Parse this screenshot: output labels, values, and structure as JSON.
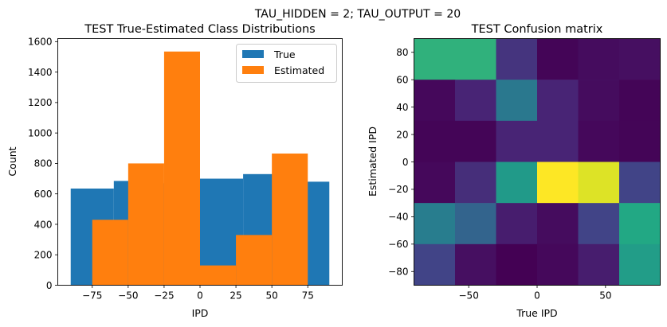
{
  "suptitle": "TAU_HIDDEN = 2; TAU_OUTPUT = 20",
  "chart_data": [
    {
      "type": "bar",
      "subtype": "histogram",
      "title": "TEST True-Estimated Class Distributions",
      "xlabel": "IPD",
      "ylabel": "Count",
      "xlim": [
        -99,
        99
      ],
      "ylim": [
        0,
        1620
      ],
      "xticks": [
        -75,
        -50,
        -25,
        0,
        25,
        50,
        75
      ],
      "yticks": [
        0,
        200,
        400,
        600,
        800,
        1000,
        1200,
        1400,
        1600
      ],
      "legend": {
        "position": "top-right",
        "entries": [
          "True",
          "Estimated"
        ]
      },
      "series": [
        {
          "name": "True",
          "color": "#1f77b4",
          "bins": [
            {
              "start": -90,
              "end": -60,
              "value": 635
            },
            {
              "start": -60,
              "end": -30,
              "value": 685
            },
            {
              "start": -30,
              "end": 0,
              "value": 670
            },
            {
              "start": 0,
              "end": 30,
              "value": 700
            },
            {
              "start": 30,
              "end": 60,
              "value": 730
            },
            {
              "start": 60,
              "end": 90,
              "value": 680
            }
          ]
        },
        {
          "name": "Estimated",
          "color": "#ff7f0e",
          "bins": [
            {
              "start": -75,
              "end": -50,
              "value": 430
            },
            {
              "start": -50,
              "end": -25,
              "value": 800
            },
            {
              "start": -25,
              "end": 0,
              "value": 1535
            },
            {
              "start": 0,
              "end": 25,
              "value": 130
            },
            {
              "start": 25,
              "end": 50,
              "value": 330
            },
            {
              "start": 50,
              "end": 75,
              "value": 865
            }
          ]
        }
      ]
    },
    {
      "type": "heatmap",
      "title": "TEST Confusion matrix",
      "xlabel": "True IPD",
      "ylabel": "Estimated IPD",
      "colormap": "viridis",
      "xlim": [
        -90,
        90
      ],
      "ylim": [
        -90,
        90
      ],
      "xticks": [
        -50,
        0,
        50
      ],
      "yticks": [
        80,
        60,
        40,
        20,
        0,
        -20,
        -40,
        -60,
        -80
      ],
      "x_bin_edges": [
        -90,
        -60,
        -30,
        0,
        30,
        60,
        90
      ],
      "y_bin_edges": [
        90,
        60,
        30,
        0,
        -30,
        -60,
        -90
      ],
      "rows_top_to_bottom": [
        [
          0.64,
          0.64,
          0.15,
          0.01,
          0.03,
          0.04
        ],
        [
          0.02,
          0.1,
          0.4,
          0.1,
          0.03,
          0.01
        ],
        [
          0.01,
          0.01,
          0.1,
          0.1,
          0.02,
          0.01
        ],
        [
          0.02,
          0.13,
          0.54,
          1.0,
          0.95,
          0.2
        ],
        [
          0.42,
          0.32,
          0.08,
          0.03,
          0.2,
          0.6
        ],
        [
          0.2,
          0.04,
          0.0,
          0.02,
          0.08,
          0.55
        ]
      ]
    }
  ]
}
